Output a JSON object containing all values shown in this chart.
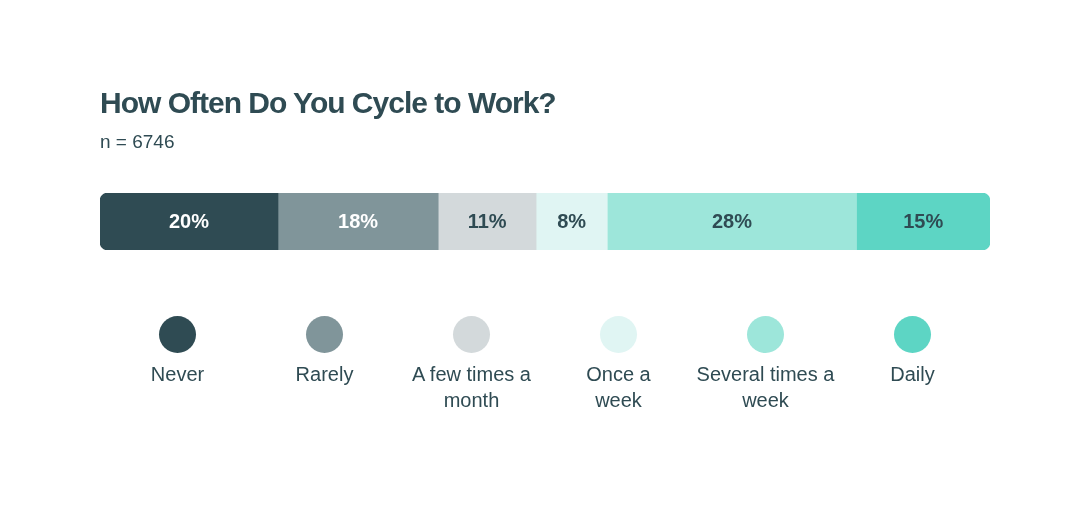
{
  "chart_data": {
    "type": "bar",
    "title": "How Often Do You Cycle to Work?",
    "subtitle": "n = 6746",
    "orientation": "horizontal",
    "stacked": true,
    "categories": [
      null
    ],
    "xlim": [
      0,
      100
    ],
    "legend": "bottom",
    "series": [
      {
        "name": "Never",
        "color": "#2f4b53",
        "values": [
          20
        ],
        "value_labels": [
          "20%"
        ]
      },
      {
        "name": "Rarely",
        "color": "#80959a",
        "values": [
          18
        ],
        "value_labels": [
          "18%"
        ]
      },
      {
        "name": "A few times a month",
        "color": "#d3d9db",
        "values": [
          11
        ],
        "value_labels": [
          "11%"
        ]
      },
      {
        "name": "Once a week",
        "color": "#e0f5f3",
        "values": [
          8
        ],
        "value_labels": [
          "8%"
        ]
      },
      {
        "name": "Several times a week",
        "color": "#9de6da",
        "values": [
          28
        ],
        "value_labels": [
          "28%"
        ]
      },
      {
        "name": "Daily",
        "color": "#5dd5c4",
        "values": [
          15
        ],
        "value_labels": [
          "15%"
        ]
      }
    ]
  }
}
